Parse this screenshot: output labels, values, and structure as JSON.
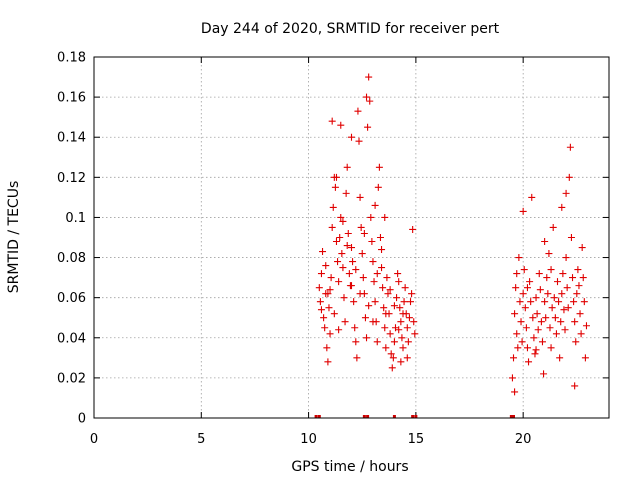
{
  "chart_data": {
    "type": "scatter",
    "title": "Day 244 of 2020, SRMTID for receiver pert",
    "xlabel": "GPS time / hours",
    "ylabel": "SRMTID / TECUs",
    "xlim": [
      0,
      24
    ],
    "ylim": [
      0,
      0.18
    ],
    "xticks": [
      0,
      5,
      10,
      15,
      20
    ],
    "yticks": [
      0,
      0.02,
      0.04,
      0.06,
      0.08,
      0.1,
      0.12,
      0.14,
      0.16,
      0.18
    ],
    "xtick_labels": [
      "0",
      "5",
      "10",
      "15",
      "20"
    ],
    "ytick_labels": [
      "0",
      "0.02",
      "0.04",
      "0.06",
      "0.08",
      "0.1",
      "0.12",
      "0.14",
      "0.16",
      "0.18"
    ],
    "grid": true,
    "marker": "+",
    "color": "#e00000",
    "series": [
      {
        "name": "SRMTID",
        "points": [
          [
            10.5,
            0.065
          ],
          [
            10.55,
            0.058
          ],
          [
            10.6,
            0.072
          ],
          [
            10.65,
            0.083
          ],
          [
            10.7,
            0.05
          ],
          [
            10.75,
            0.045
          ],
          [
            10.8,
            0.062
          ],
          [
            10.85,
            0.035
          ],
          [
            10.9,
            0.028
          ],
          [
            10.95,
            0.055
          ],
          [
            11.0,
            0.042
          ],
          [
            11.05,
            0.07
          ],
          [
            11.1,
            0.095
          ],
          [
            11.15,
            0.105
          ],
          [
            11.2,
            0.12
          ],
          [
            11.25,
            0.115
          ],
          [
            11.3,
            0.088
          ],
          [
            11.35,
            0.078
          ],
          [
            11.4,
            0.068
          ],
          [
            11.45,
            0.09
          ],
          [
            11.5,
            0.1
          ],
          [
            11.55,
            0.082
          ],
          [
            11.6,
            0.075
          ],
          [
            11.65,
            0.06
          ],
          [
            11.7,
            0.048
          ],
          [
            11.75,
            0.112
          ],
          [
            11.8,
            0.125
          ],
          [
            11.85,
            0.092
          ],
          [
            11.9,
            0.072
          ],
          [
            11.95,
            0.066
          ],
          [
            12.0,
            0.085
          ],
          [
            12.05,
            0.078
          ],
          [
            12.1,
            0.058
          ],
          [
            12.15,
            0.045
          ],
          [
            12.2,
            0.038
          ],
          [
            12.25,
            0.03
          ],
          [
            12.3,
            0.153
          ],
          [
            12.35,
            0.138
          ],
          [
            12.4,
            0.11
          ],
          [
            12.45,
            0.095
          ],
          [
            12.5,
            0.082
          ],
          [
            12.55,
            0.07
          ],
          [
            12.6,
            0.062
          ],
          [
            12.65,
            0.05
          ],
          [
            12.7,
            0.04
          ],
          [
            12.75,
            0.145
          ],
          [
            12.8,
            0.17
          ],
          [
            12.85,
            0.158
          ],
          [
            12.9,
            0.1
          ],
          [
            12.95,
            0.088
          ],
          [
            13.0,
            0.078
          ],
          [
            13.05,
            0.068
          ],
          [
            13.1,
            0.058
          ],
          [
            13.15,
            0.048
          ],
          [
            13.2,
            0.038
          ],
          [
            13.25,
            0.115
          ],
          [
            13.3,
            0.125
          ],
          [
            13.35,
            0.09
          ],
          [
            13.4,
            0.075
          ],
          [
            13.45,
            0.065
          ],
          [
            13.5,
            0.055
          ],
          [
            13.55,
            0.045
          ],
          [
            13.6,
            0.035
          ],
          [
            13.65,
            0.07
          ],
          [
            13.7,
            0.062
          ],
          [
            13.75,
            0.052
          ],
          [
            13.8,
            0.042
          ],
          [
            13.85,
            0.032
          ],
          [
            13.9,
            0.025
          ],
          [
            13.95,
            0.03
          ],
          [
            14.0,
            0.038
          ],
          [
            14.05,
            0.045
          ],
          [
            14.1,
            0.06
          ],
          [
            14.15,
            0.072
          ],
          [
            14.2,
            0.068
          ],
          [
            14.25,
            0.055
          ],
          [
            14.3,
            0.048
          ],
          [
            14.35,
            0.04
          ],
          [
            14.4,
            0.035
          ],
          [
            14.45,
            0.058
          ],
          [
            14.5,
            0.065
          ],
          [
            14.55,
            0.052
          ],
          [
            14.6,
            0.045
          ],
          [
            14.65,
            0.038
          ],
          [
            14.7,
            0.05
          ],
          [
            14.75,
            0.058
          ],
          [
            14.8,
            0.062
          ],
          [
            14.85,
            0.094
          ],
          [
            14.9,
            0.048
          ],
          [
            14.95,
            0.042
          ],
          [
            10.6,
            0.054
          ],
          [
            10.8,
            0.076
          ],
          [
            11.0,
            0.064
          ],
          [
            11.2,
            0.052
          ],
          [
            11.4,
            0.044
          ],
          [
            11.6,
            0.098
          ],
          [
            11.8,
            0.086
          ],
          [
            12.0,
            0.066
          ],
          [
            12.2,
            0.074
          ],
          [
            12.4,
            0.062
          ],
          [
            12.6,
            0.092
          ],
          [
            12.8,
            0.056
          ],
          [
            13.0,
            0.048
          ],
          [
            13.2,
            0.072
          ],
          [
            13.4,
            0.084
          ],
          [
            13.6,
            0.052
          ],
          [
            13.8,
            0.064
          ],
          [
            14.0,
            0.056
          ],
          [
            14.2,
            0.044
          ],
          [
            14.4,
            0.052
          ],
          [
            11.1,
            0.148
          ],
          [
            11.5,
            0.146
          ],
          [
            12.0,
            0.14
          ],
          [
            12.7,
            0.16
          ],
          [
            11.3,
            0.12
          ],
          [
            13.1,
            0.106
          ],
          [
            13.55,
            0.1
          ],
          [
            14.3,
            0.028
          ],
          [
            14.6,
            0.03
          ],
          [
            10.9,
            0.062
          ],
          [
            19.5,
            0.02
          ],
          [
            19.55,
            0.03
          ],
          [
            19.6,
            0.052
          ],
          [
            19.65,
            0.065
          ],
          [
            19.7,
            0.042
          ],
          [
            19.75,
            0.035
          ],
          [
            19.8,
            0.08
          ],
          [
            19.85,
            0.058
          ],
          [
            19.9,
            0.048
          ],
          [
            19.95,
            0.038
          ],
          [
            20.0,
            0.062
          ],
          [
            20.05,
            0.074
          ],
          [
            20.1,
            0.055
          ],
          [
            20.15,
            0.045
          ],
          [
            20.2,
            0.035
          ],
          [
            20.25,
            0.028
          ],
          [
            20.3,
            0.068
          ],
          [
            20.35,
            0.058
          ],
          [
            20.4,
            0.11
          ],
          [
            20.45,
            0.05
          ],
          [
            20.5,
            0.04
          ],
          [
            20.55,
            0.032
          ],
          [
            20.6,
            0.06
          ],
          [
            20.65,
            0.052
          ],
          [
            20.7,
            0.044
          ],
          [
            20.75,
            0.072
          ],
          [
            20.8,
            0.064
          ],
          [
            20.85,
            0.048
          ],
          [
            20.9,
            0.038
          ],
          [
            20.95,
            0.022
          ],
          [
            21.0,
            0.058
          ],
          [
            21.05,
            0.05
          ],
          [
            21.1,
            0.07
          ],
          [
            21.15,
            0.062
          ],
          [
            21.2,
            0.082
          ],
          [
            21.25,
            0.045
          ],
          [
            21.3,
            0.035
          ],
          [
            21.35,
            0.055
          ],
          [
            21.4,
            0.095
          ],
          [
            21.45,
            0.06
          ],
          [
            21.5,
            0.05
          ],
          [
            21.55,
            0.042
          ],
          [
            21.6,
            0.068
          ],
          [
            21.65,
            0.058
          ],
          [
            21.7,
            0.03
          ],
          [
            21.75,
            0.048
          ],
          [
            21.8,
            0.062
          ],
          [
            21.85,
            0.072
          ],
          [
            21.9,
            0.054
          ],
          [
            21.95,
            0.044
          ],
          [
            22.0,
            0.08
          ],
          [
            22.05,
            0.065
          ],
          [
            22.1,
            0.055
          ],
          [
            22.15,
            0.12
          ],
          [
            22.2,
            0.135
          ],
          [
            22.25,
            0.09
          ],
          [
            22.3,
            0.07
          ],
          [
            22.35,
            0.058
          ],
          [
            22.4,
            0.048
          ],
          [
            22.45,
            0.038
          ],
          [
            22.5,
            0.062
          ],
          [
            22.55,
            0.074
          ],
          [
            22.6,
            0.066
          ],
          [
            22.65,
            0.052
          ],
          [
            22.7,
            0.042
          ],
          [
            22.75,
            0.085
          ],
          [
            22.8,
            0.07
          ],
          [
            22.85,
            0.058
          ],
          [
            22.9,
            0.03
          ],
          [
            22.95,
            0.046
          ],
          [
            20.0,
            0.103
          ],
          [
            21.0,
            0.088
          ],
          [
            21.8,
            0.105
          ],
          [
            22.0,
            0.112
          ],
          [
            19.7,
            0.072
          ],
          [
            20.2,
            0.065
          ],
          [
            20.6,
            0.034
          ],
          [
            21.3,
            0.074
          ],
          [
            22.4,
            0.016
          ],
          [
            19.6,
            0.013
          ]
        ]
      }
    ],
    "rug_x": [
      10.35,
      10.5,
      12.6,
      12.75,
      14.0,
      14.85,
      15.0,
      19.45,
      19.55
    ]
  }
}
